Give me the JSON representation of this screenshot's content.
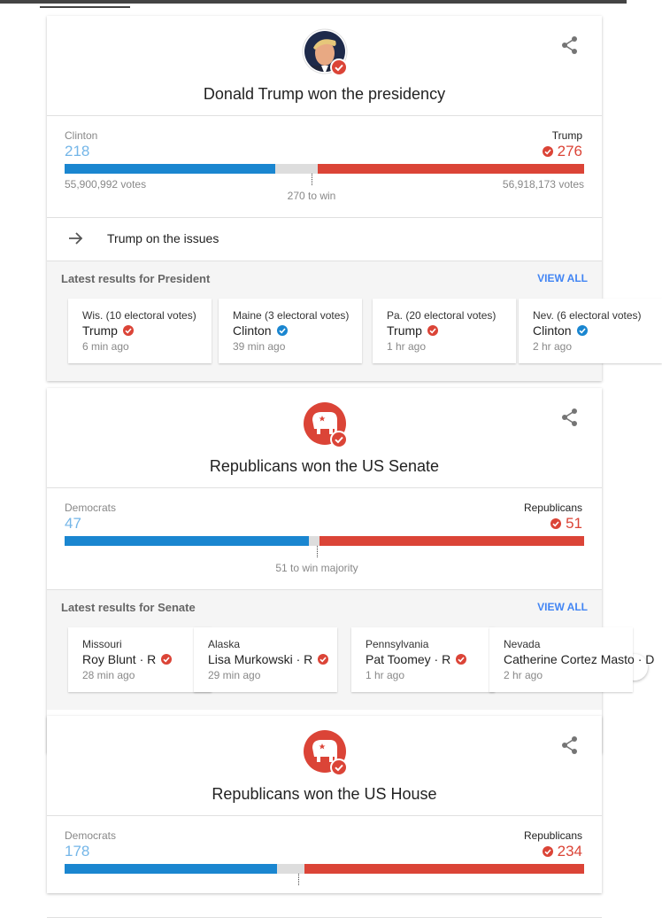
{
  "races": [
    {
      "title": "Donald Trump won the presidency",
      "icon": "portrait",
      "left": {
        "label": "Clinton",
        "count": "218",
        "votes": "55,900,992 votes"
      },
      "right": {
        "label": "Trump",
        "count": "276",
        "votes": "56,918,173 votes"
      },
      "threshold": "270 to win",
      "issues_link": "Trump on the issues",
      "latest": {
        "heading": "Latest results for President",
        "view_all": "VIEW ALL",
        "items": [
          {
            "race": "Wis. (10 electoral votes)",
            "winner": "Trump",
            "color": "#db4437",
            "time": "6 min ago"
          },
          {
            "race": "Maine (3 electoral votes)",
            "winner": "Clinton",
            "color": "#1a86d0",
            "time": "39 min ago"
          },
          {
            "race": "Pa. (20 electoral votes)",
            "winner": "Trump",
            "color": "#db4437",
            "time": "1 hr ago"
          },
          {
            "race": "Nev. (6 electoral votes)",
            "winner": "Clinton",
            "color": "#1a86d0",
            "time": "2 hr ago"
          }
        ]
      }
    },
    {
      "title": "Republicans won the US Senate",
      "icon": "elephant",
      "left": {
        "label": "Democrats",
        "count": "47"
      },
      "right": {
        "label": "Republicans",
        "count": "51"
      },
      "threshold": "51 to win majority",
      "latest": {
        "heading": "Latest results for Senate",
        "view_all": "VIEW ALL",
        "items": [
          {
            "race": "Missouri",
            "winner": "Roy Blunt · R",
            "color": "#db4437",
            "time": "28 min ago"
          },
          {
            "race": "Alaska",
            "winner": "Lisa Murkowski · R",
            "color": "#db4437",
            "time": "29 min ago"
          },
          {
            "race": "Pennsylvania",
            "winner": "Pat Toomey · R",
            "color": "#db4437",
            "time": "1 hr ago"
          },
          {
            "race": "Nevada",
            "winner": "Catherine Cortez Masto · D",
            "color": "#1a86d0",
            "time": "2 hr ago"
          }
        ]
      }
    },
    {
      "title": "Republicans won the US House",
      "icon": "elephant",
      "left": {
        "label": "Democrats",
        "count": "178"
      },
      "right": {
        "label": "Republicans",
        "count": "234"
      }
    }
  ]
}
